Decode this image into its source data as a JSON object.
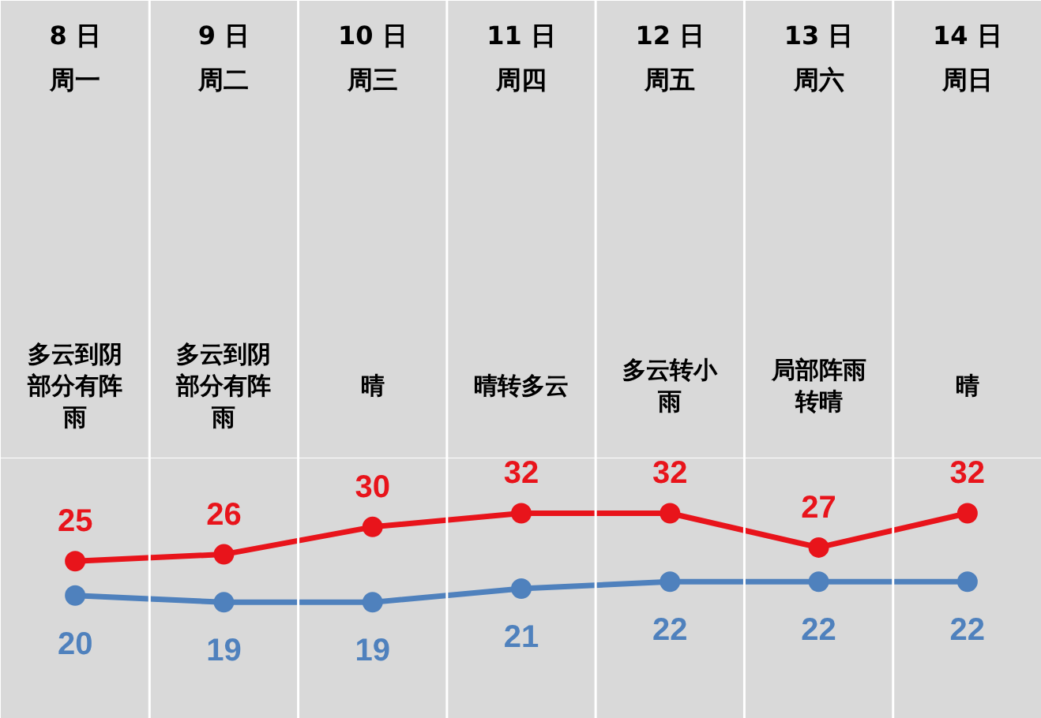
{
  "chart_data": {
    "type": "line",
    "categories": [
      "8 日周一",
      "9 日周二",
      "10 日周三",
      "11 日周四",
      "12 日周五",
      "13 日周六",
      "14 日周日"
    ],
    "series": [
      {
        "color": "#e8141b",
        "values": [
          25,
          26,
          30,
          32,
          32,
          27,
          32
        ]
      },
      {
        "color": "#4f81bd",
        "values": [
          20,
          19,
          19,
          21,
          22,
          22,
          22
        ]
      }
    ],
    "annotations": [
      "多云到阴部分有阵雨",
      "多云到阴部分有阵雨",
      "晴",
      "晴转多云",
      "多云转小雨",
      "局部阵雨转晴",
      "晴"
    ],
    "ylim": [
      2,
      40
    ],
    "tick_labels": false,
    "data_labels": true,
    "marker": "circle",
    "line_style": "solid"
  }
}
